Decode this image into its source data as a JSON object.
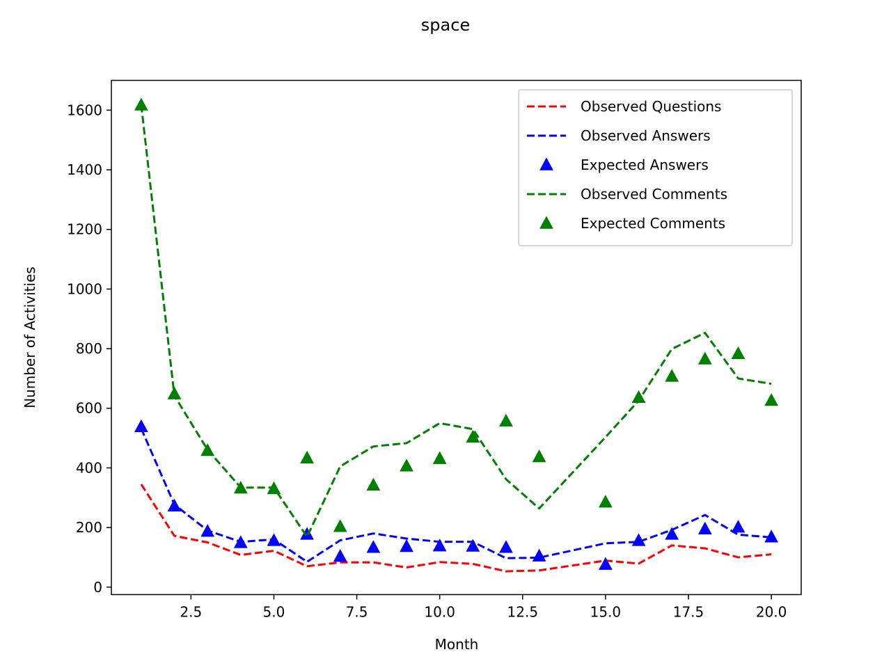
{
  "chart_data": {
    "type": "line",
    "title": "space",
    "xlabel": "Month",
    "ylabel": "Number of Activities",
    "xlim": [
      0.1,
      20.9
    ],
    "ylim": [
      -25,
      1700
    ],
    "x_ticks": [
      2.5,
      5.0,
      7.5,
      10.0,
      12.5,
      15.0,
      17.5,
      20.0
    ],
    "x_tick_labels": [
      "2.5",
      "5.0",
      "7.5",
      "10.0",
      "12.5",
      "15.0",
      "17.5",
      "20.0"
    ],
    "y_ticks": [
      0,
      200,
      400,
      600,
      800,
      1000,
      1200,
      1400,
      1600
    ],
    "y_tick_labels": [
      "0",
      "200",
      "400",
      "600",
      "800",
      "1000",
      "1200",
      "1400",
      "1600"
    ],
    "grid": false,
    "legend_position": "top-right",
    "x": [
      1,
      2,
      3,
      4,
      5,
      6,
      7,
      8,
      9,
      10,
      11,
      12,
      13,
      15,
      16,
      17,
      18,
      19,
      20
    ],
    "series": [
      {
        "name": "Observed Questions",
        "style": "dashed-line",
        "color": "#ff0000",
        "values": [
          345,
          172,
          150,
          108,
          122,
          70,
          83,
          83,
          66,
          84,
          78,
          53,
          56,
          89,
          79,
          140,
          130,
          100,
          110
        ]
      },
      {
        "name": "Observed Answers",
        "style": "dashed-line",
        "color": "#0000ff",
        "values": [
          532,
          277,
          190,
          152,
          160,
          85,
          157,
          180,
          163,
          152,
          152,
          97,
          99,
          147,
          152,
          192,
          242,
          176,
          167
        ]
      },
      {
        "name": "Expected Answers",
        "style": "triangle-marker",
        "color": "#0000ff",
        "values": [
          538,
          272,
          187,
          149,
          156,
          177,
          103,
          133,
          136,
          138,
          137,
          133,
          104,
          76,
          156,
          177,
          195,
          201,
          168
        ]
      },
      {
        "name": "Observed Comments",
        "style": "dashed-line",
        "color": "#008000",
        "values": [
          1618,
          642,
          461,
          334,
          334,
          169,
          405,
          472,
          483,
          550,
          530,
          362,
          264,
          503,
          626,
          799,
          853,
          700,
          682
        ]
      },
      {
        "name": "Expected Comments",
        "style": "triangle-marker",
        "color": "#008000",
        "values": [
          1617,
          648,
          458,
          332,
          330,
          433,
          203,
          342,
          406,
          431,
          503,
          557,
          437,
          285,
          636,
          707,
          765,
          783,
          626
        ]
      }
    ]
  }
}
